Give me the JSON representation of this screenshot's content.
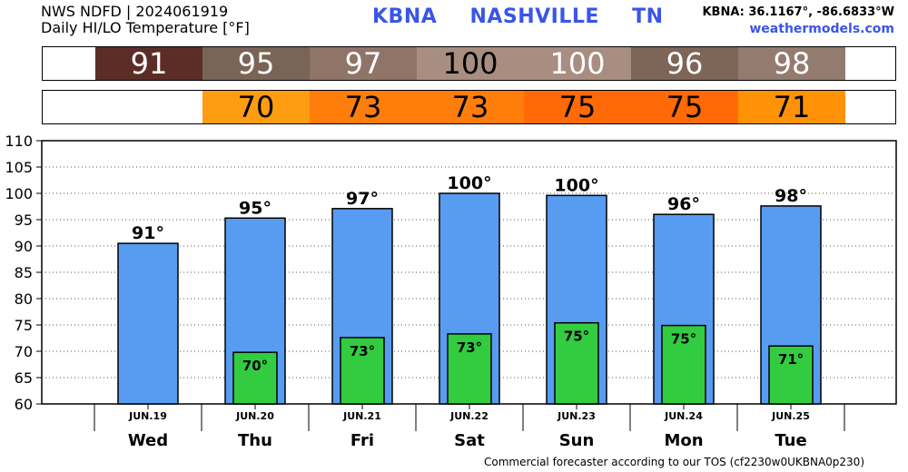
{
  "header": {
    "line1": "NWS NDFD | 2024061919",
    "line2": "Daily HI/LO Temperature [°F]",
    "station": "KBNA",
    "city": "NASHVILLE",
    "state": "TN",
    "coords": "KBNA: 36.1167°, -86.6833°W",
    "site": "weathermodels.com"
  },
  "footer": "Commercial forecaster according to our TOS (cf2230w0UKBNA0p230)",
  "hi_strip": [
    {
      "value": "91",
      "color": "#5c2d27",
      "text_color": "#ffffff"
    },
    {
      "value": "95",
      "color": "#7a6457",
      "text_color": "#ffffff"
    },
    {
      "value": "97",
      "color": "#8f7568",
      "text_color": "#ffffff"
    },
    {
      "value": "100",
      "color": "#a88e80",
      "text_color": "#000000"
    },
    {
      "value": "100",
      "color": "#a88e80",
      "text_color": "#ffffff"
    },
    {
      "value": "96",
      "color": "#7d6658",
      "text_color": "#ffffff"
    },
    {
      "value": "98",
      "color": "#937b6f",
      "text_color": "#ffffff"
    }
  ],
  "lo_strip": [
    {
      "value": "",
      "color": "#ffffff",
      "text_color": "#000000"
    },
    {
      "value": "70",
      "color": "#ff9d12",
      "text_color": "#000000"
    },
    {
      "value": "73",
      "color": "#ff7d0a",
      "text_color": "#000000"
    },
    {
      "value": "73",
      "color": "#ff7d0a",
      "text_color": "#000000"
    },
    {
      "value": "75",
      "color": "#ff6a06",
      "text_color": "#000000"
    },
    {
      "value": "75",
      "color": "#ff6a06",
      "text_color": "#000000"
    },
    {
      "value": "71",
      "color": "#ff9207",
      "text_color": "#000000"
    }
  ],
  "chart_data": {
    "type": "bar",
    "categories": [
      "Wed",
      "Thu",
      "Fri",
      "Sat",
      "Sun",
      "Mon",
      "Tue"
    ],
    "dates": [
      "JUN.19",
      "JUN.20",
      "JUN.21",
      "JUN.22",
      "JUN.23",
      "JUN.24",
      "JUN.25"
    ],
    "ylim": [
      60,
      110
    ],
    "yticks": [
      60,
      65,
      70,
      75,
      80,
      85,
      90,
      95,
      100,
      105,
      110
    ],
    "grid": true,
    "series": [
      {
        "values": [
          90.5,
          95.3,
          97.1,
          100,
          99.6,
          96,
          97.6
        ],
        "labels": [
          "91°",
          "95°",
          "97°",
          "100°",
          "100°",
          "96°",
          "98°"
        ],
        "color": "#579cf1"
      },
      {
        "values": [
          null,
          69.8,
          72.6,
          73.3,
          75.4,
          74.9,
          71
        ],
        "labels": [
          "",
          "70°",
          "73°",
          "73°",
          "75°",
          "75°",
          "71°"
        ],
        "color": "#33cc40"
      }
    ]
  }
}
